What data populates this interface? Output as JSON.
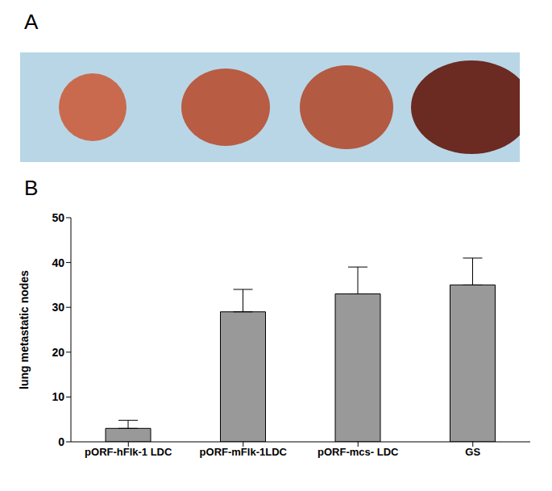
{
  "panel_labels": [
    "A",
    "B"
  ],
  "chart_data": {
    "type": "bar",
    "categories": [
      "pORF-hFlk-1 LDC",
      "pORF-mFlk-1LDC",
      "pORF-mcs- LDC",
      "GS"
    ],
    "values": [
      3,
      29,
      33,
      35
    ],
    "errors": [
      1.8,
      5,
      6,
      6
    ],
    "y_label": "lung metastatic nodes",
    "color": "#999999",
    "ylim": [
      0,
      50
    ],
    "yticks": [
      0,
      10,
      20,
      30,
      40,
      50
    ],
    "grid": false
  }
}
